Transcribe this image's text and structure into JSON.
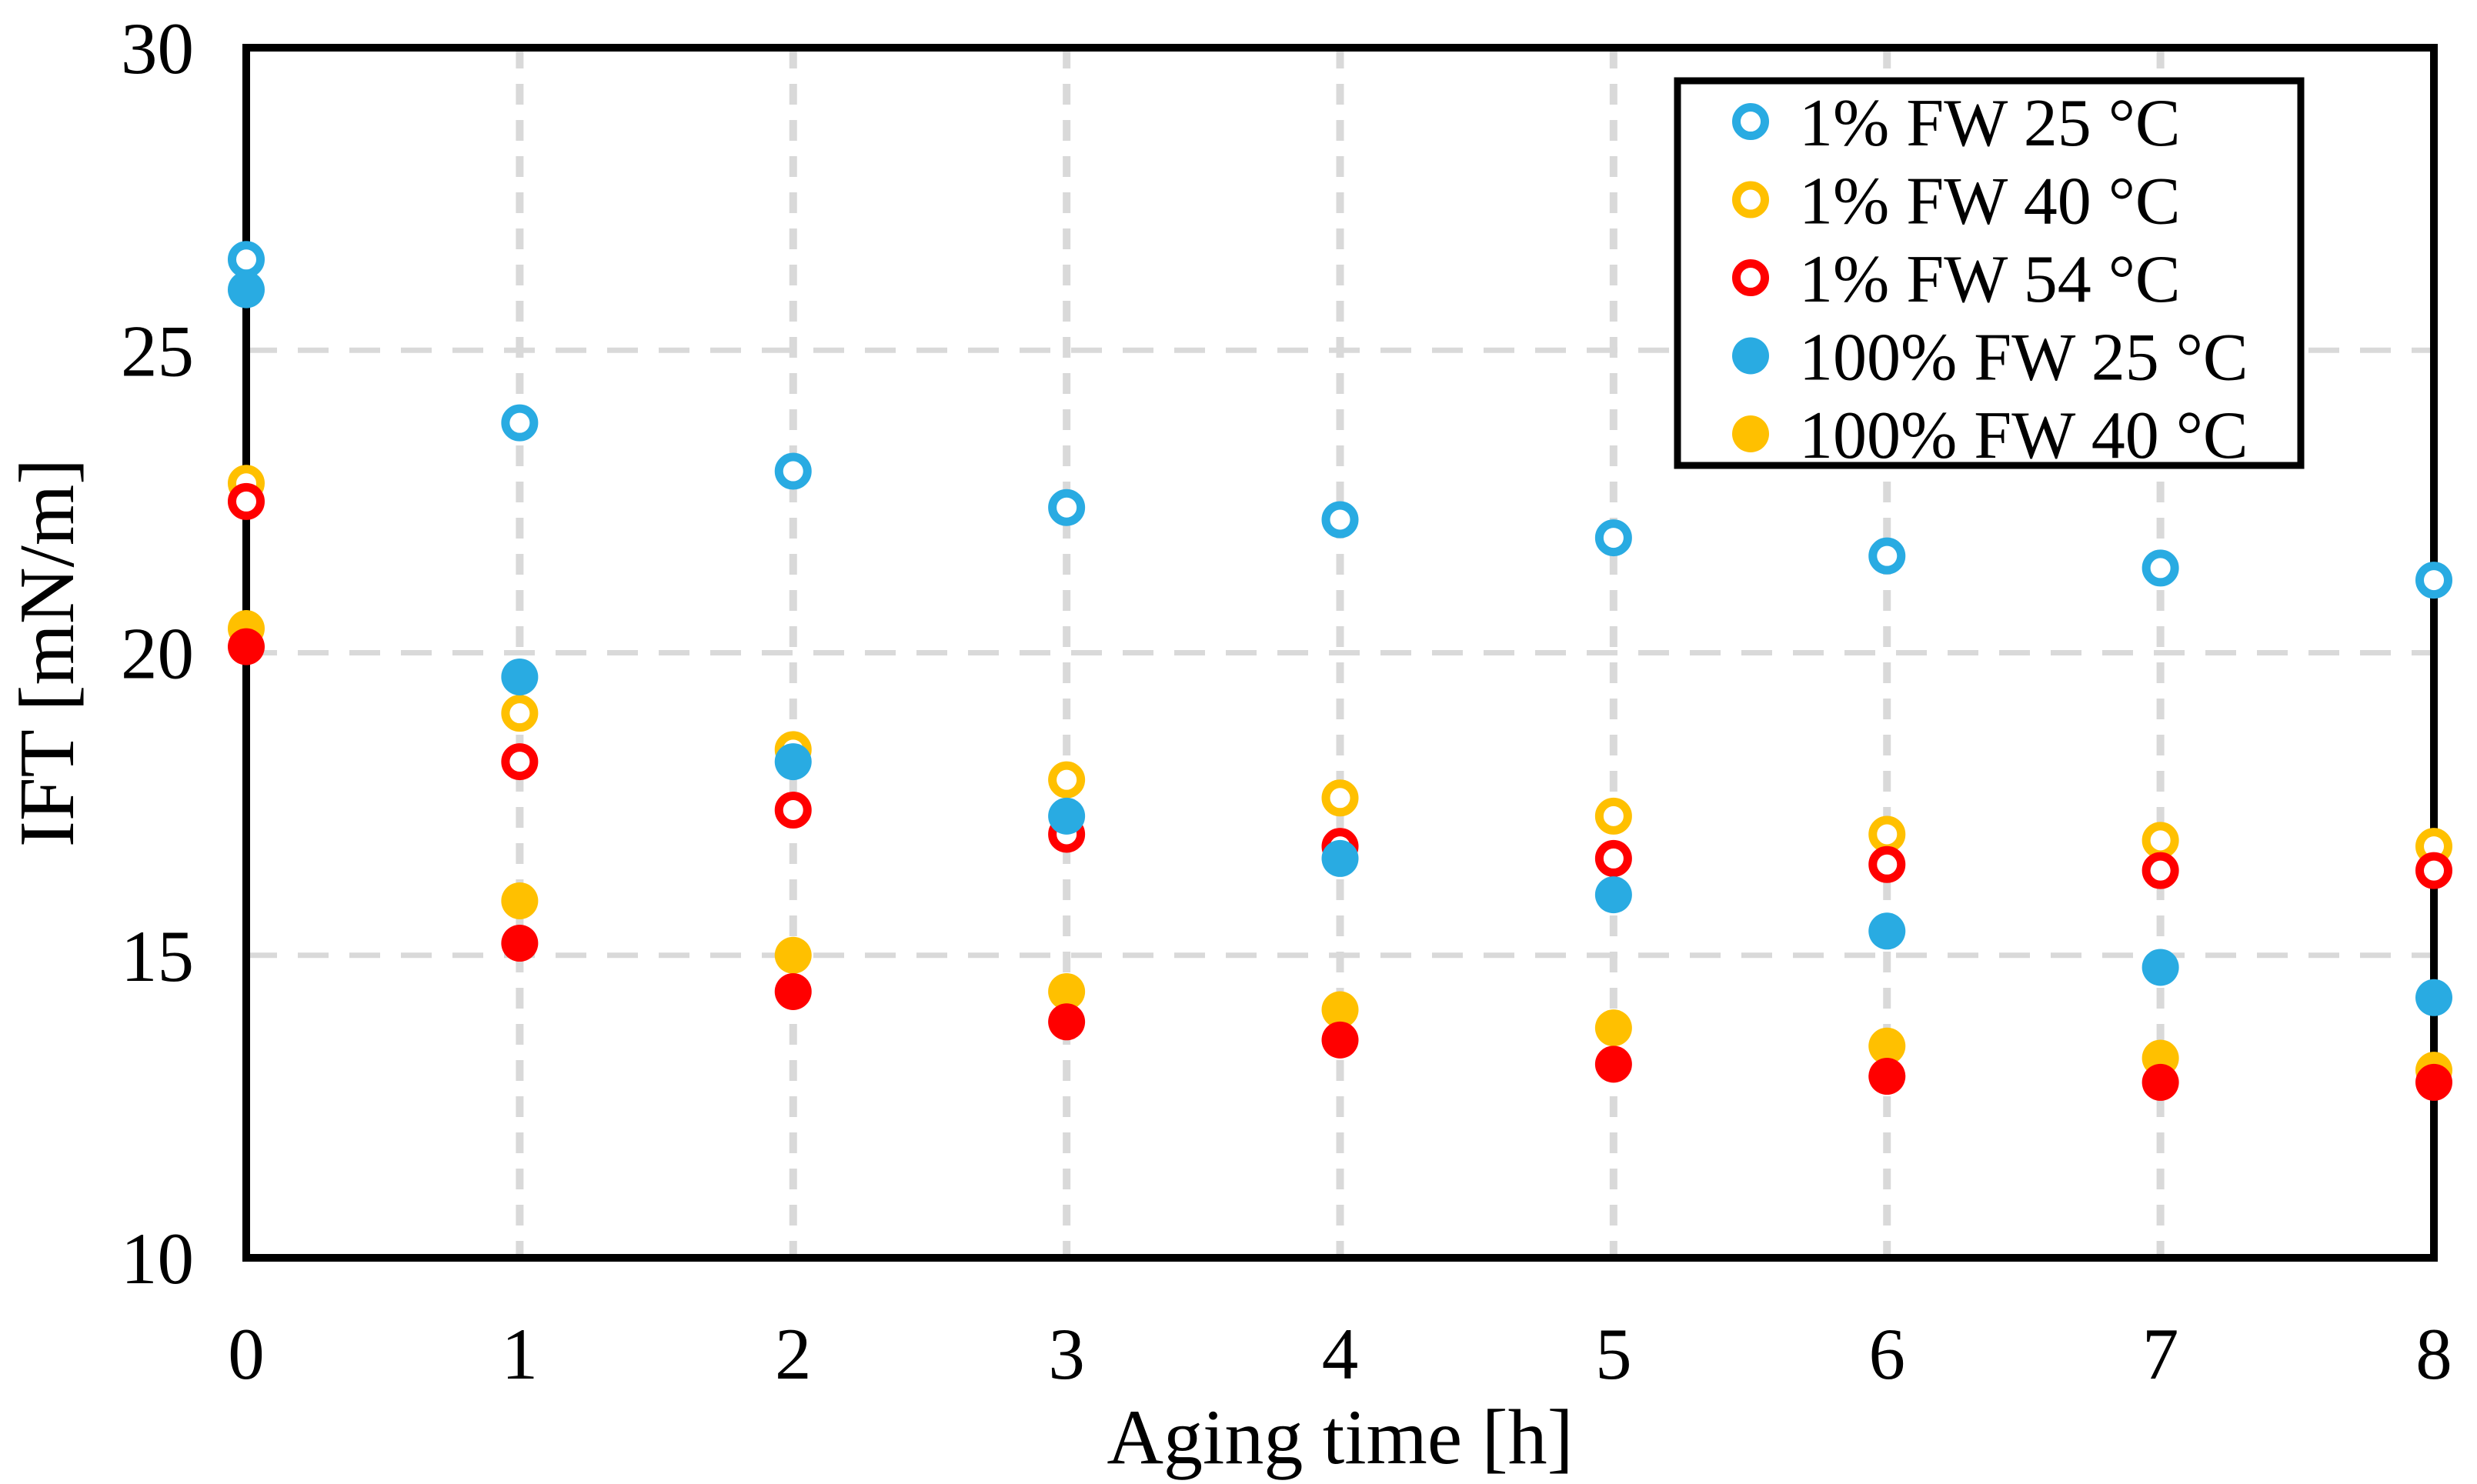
{
  "chart_data": {
    "type": "scatter",
    "title": "",
    "xlabel": "Aging time [h]",
    "ylabel": "IFT [mN/m]",
    "xlim": [
      0,
      8
    ],
    "ylim": [
      10,
      30
    ],
    "xticks": [
      0,
      1,
      2,
      3,
      4,
      5,
      6,
      7,
      8
    ],
    "yticks": [
      10,
      15,
      20,
      25,
      30
    ],
    "grid": {
      "horizontal_at": [
        15,
        20,
        25
      ],
      "vertical_at": [
        1,
        2,
        3,
        4,
        5,
        6,
        7
      ],
      "color": "#D9D9D9",
      "style": "dashed"
    },
    "x": [
      0,
      1,
      2,
      3,
      4,
      5,
      6,
      7,
      8
    ],
    "series": [
      {
        "label": "1% FW 25 °C",
        "marker": "open",
        "color": "#29ABE2",
        "in_legend": true,
        "values": [
          26.5,
          23.8,
          23.0,
          22.4,
          22.2,
          21.9,
          21.6,
          21.4,
          21.2
        ]
      },
      {
        "label": "1% FW 40 °C",
        "marker": "open",
        "color": "#FFC000",
        "in_legend": true,
        "values": [
          22.8,
          19.0,
          18.4,
          17.9,
          17.6,
          17.3,
          17.0,
          16.9,
          16.8
        ]
      },
      {
        "label": "1% FW 54 °C",
        "marker": "open",
        "color": "#FF0000",
        "in_legend": true,
        "values": [
          22.5,
          18.2,
          17.4,
          17.0,
          16.8,
          16.6,
          16.5,
          16.4,
          16.4
        ]
      },
      {
        "label": "100% FW 25 °C",
        "marker": "filled",
        "color": "#29ABE2",
        "in_legend": true,
        "values": [
          26.0,
          19.6,
          18.2,
          17.3,
          16.6,
          16.0,
          15.4,
          14.8,
          14.3
        ]
      },
      {
        "label": "100% FW 40 °C",
        "marker": "filled",
        "color": "#FFC000",
        "in_legend": true,
        "values": [
          20.4,
          15.9,
          15.0,
          14.4,
          14.1,
          13.8,
          13.5,
          13.3,
          13.1
        ]
      },
      {
        "label": "",
        "marker": "filled",
        "color": "#FF0000",
        "in_legend": false,
        "values": [
          20.1,
          15.2,
          14.4,
          13.9,
          13.6,
          13.2,
          13.0,
          12.9,
          12.9
        ]
      }
    ],
    "legend": {
      "position": "top-right",
      "background": "#FFFFFF",
      "border_color": "#000000"
    },
    "axis_color": "#000000",
    "background": "#FFFFFF"
  }
}
